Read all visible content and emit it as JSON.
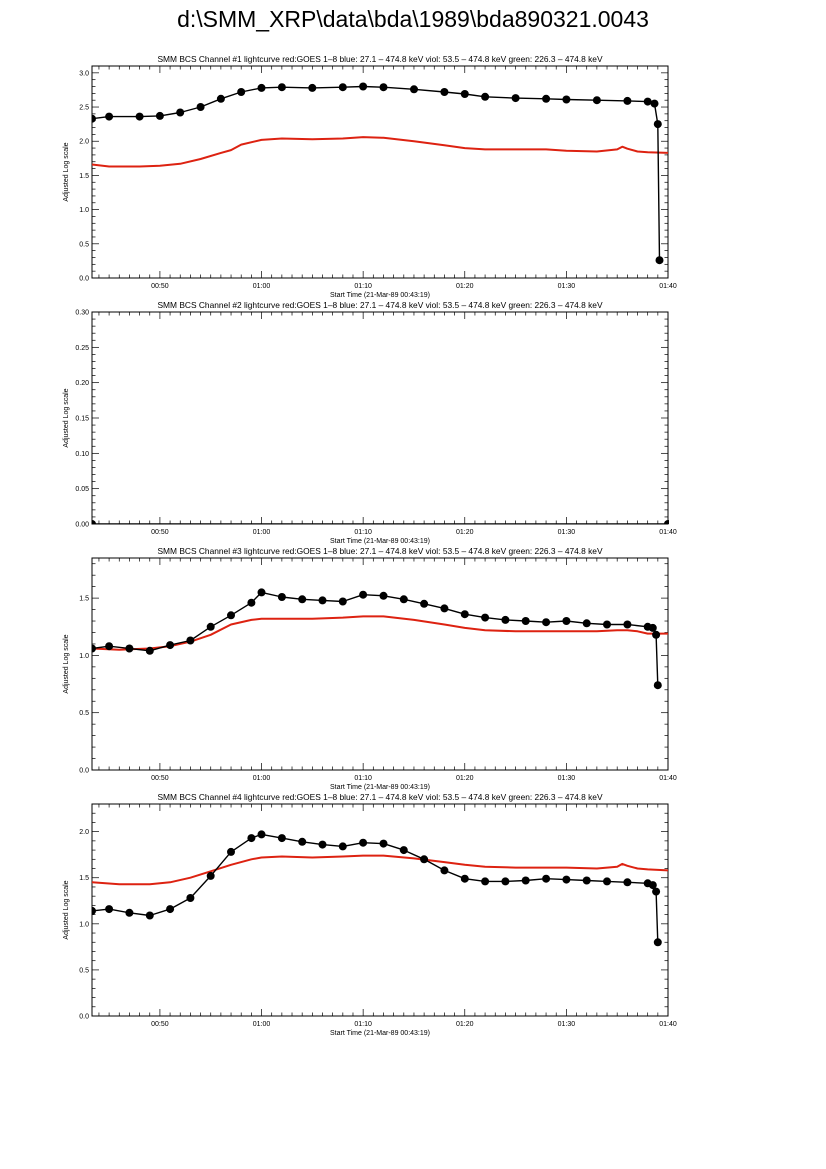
{
  "page_title": "d:\\SMM_XRP\\data\\bda\\1989\\bda890321.0043",
  "colors": {
    "goes": "#dd2211",
    "bcs": "#000000"
  },
  "chart_data": [
    {
      "type": "line",
      "title": "SMM BCS Channel #1 lightcurve  red:GOES 1–8  blue: 27.1 – 474.8 keV  viol: 53.5 – 474.8 keV  green: 226.3 – 474.8 keV",
      "xlabel": "Start Time (21-Mar-89 00:43:19)",
      "ylabel": "Adjusted Log scale",
      "xlim": [
        "00:43:19",
        "01:40:00"
      ],
      "ylim": [
        0,
        3.1
      ],
      "x_ticks": [
        "00:50",
        "01:00",
        "01:10",
        "01:20",
        "01:30",
        "01:40"
      ],
      "y_ticks": [
        "0.0",
        "0.5",
        "1.0",
        "1.5",
        "2.0",
        "2.5",
        "3.0"
      ],
      "series": [
        {
          "color": "#000000",
          "marker": "circle",
          "x": [
            "00:43:19",
            "00:45",
            "00:48",
            "00:50",
            "00:52",
            "00:54",
            "00:56",
            "00:58",
            "01:00",
            "01:02",
            "01:05",
            "01:08",
            "01:10",
            "01:12",
            "01:15",
            "01:18",
            "01:20",
            "01:22",
            "01:25",
            "01:28",
            "01:30",
            "01:33",
            "01:36",
            "01:38",
            "01:38:40",
            "01:39:00",
            "01:39:10"
          ],
          "y": [
            2.33,
            2.36,
            2.36,
            2.37,
            2.42,
            2.5,
            2.62,
            2.72,
            2.78,
            2.79,
            2.78,
            2.79,
            2.8,
            2.79,
            2.76,
            2.72,
            2.69,
            2.65,
            2.63,
            2.62,
            2.61,
            2.6,
            2.59,
            2.58,
            2.55,
            2.25,
            0.26
          ]
        },
        {
          "color": "#dd2211",
          "marker": "none",
          "x": [
            "00:43:19",
            "00:45",
            "00:48",
            "00:50",
            "00:52",
            "00:54",
            "00:56",
            "00:57",
            "00:58",
            "01:00",
            "01:02",
            "01:05",
            "01:08",
            "01:10",
            "01:12",
            "01:15",
            "01:18",
            "01:20",
            "01:22",
            "01:25",
            "01:28",
            "01:30",
            "01:33",
            "01:35",
            "01:35:30",
            "01:36",
            "01:37",
            "01:38",
            "01:40"
          ],
          "y": [
            1.66,
            1.63,
            1.63,
            1.64,
            1.67,
            1.74,
            1.83,
            1.87,
            1.95,
            2.02,
            2.04,
            2.03,
            2.04,
            2.06,
            2.05,
            2.0,
            1.94,
            1.9,
            1.88,
            1.88,
            1.88,
            1.86,
            1.85,
            1.88,
            1.92,
            1.89,
            1.85,
            1.84,
            1.83
          ]
        }
      ]
    },
    {
      "type": "line",
      "title": "SMM BCS Channel #2 lightcurve  red:GOES 1–8  blue: 27.1 – 474.8 keV  viol: 53.5 – 474.8 keV  green: 226.3 – 474.8 keV",
      "xlabel": "Start Time (21-Mar-89 00:43:19)",
      "ylabel": "Adjusted Log scale",
      "xlim": [
        "00:43:19",
        "01:40:00"
      ],
      "ylim": [
        0,
        0.3
      ],
      "x_ticks": [
        "00:50",
        "01:00",
        "01:10",
        "01:20",
        "01:30",
        "01:40"
      ],
      "y_ticks": [
        "0.00",
        "0.05",
        "0.10",
        "0.15",
        "0.20",
        "0.25",
        "0.30"
      ],
      "series": [
        {
          "color": "#000000",
          "marker": "circle",
          "x": [
            "00:43:19",
            "01:40:00"
          ],
          "y": [
            0.0,
            0.0
          ]
        }
      ]
    },
    {
      "type": "line",
      "title": "SMM BCS Channel #3 lightcurve  red:GOES 1–8  blue: 27.1 – 474.8 keV  viol: 53.5 – 474.8 keV  green: 226.3 – 474.8 keV",
      "xlabel": "Start Time (21-Mar-89 00:43:19)",
      "ylabel": "Adjusted Log scale",
      "xlim": [
        "00:43:19",
        "01:40:00"
      ],
      "ylim": [
        0,
        1.85
      ],
      "x_ticks": [
        "00:50",
        "01:00",
        "01:10",
        "01:20",
        "01:30",
        "01:40"
      ],
      "y_ticks": [
        "0.0",
        "0.5",
        "1.0",
        "1.5"
      ],
      "series": [
        {
          "color": "#000000",
          "marker": "circle",
          "x": [
            "00:43:19",
            "00:45",
            "00:47",
            "00:49",
            "00:51",
            "00:53",
            "00:55",
            "00:57",
            "00:59",
            "01:00",
            "01:02",
            "01:04",
            "01:06",
            "01:08",
            "01:10",
            "01:12",
            "01:14",
            "01:16",
            "01:18",
            "01:20",
            "01:22",
            "01:24",
            "01:26",
            "01:28",
            "01:30",
            "01:32",
            "01:34",
            "01:36",
            "01:38",
            "01:38:30",
            "01:38:50",
            "01:39:00"
          ],
          "y": [
            1.06,
            1.08,
            1.06,
            1.04,
            1.09,
            1.13,
            1.25,
            1.35,
            1.46,
            1.55,
            1.51,
            1.49,
            1.48,
            1.47,
            1.53,
            1.52,
            1.49,
            1.45,
            1.41,
            1.36,
            1.33,
            1.31,
            1.3,
            1.29,
            1.3,
            1.28,
            1.27,
            1.27,
            1.25,
            1.24,
            1.18,
            0.74
          ]
        },
        {
          "color": "#dd2211",
          "marker": "none",
          "x": [
            "00:43:19",
            "00:46",
            "00:49",
            "00:51",
            "00:53",
            "00:55",
            "00:57",
            "00:59",
            "01:00",
            "01:02",
            "01:05",
            "01:08",
            "01:10",
            "01:12",
            "01:15",
            "01:18",
            "01:20",
            "01:22",
            "01:25",
            "01:28",
            "01:30",
            "01:33",
            "01:35",
            "01:36",
            "01:37",
            "01:38",
            "01:40"
          ],
          "y": [
            1.06,
            1.05,
            1.06,
            1.08,
            1.12,
            1.18,
            1.27,
            1.31,
            1.32,
            1.32,
            1.32,
            1.33,
            1.34,
            1.34,
            1.31,
            1.27,
            1.24,
            1.22,
            1.21,
            1.21,
            1.21,
            1.21,
            1.22,
            1.22,
            1.21,
            1.19,
            1.19
          ]
        }
      ]
    },
    {
      "type": "line",
      "title": "SMM BCS Channel #4 lightcurve  red:GOES 1–8  blue: 27.1 – 474.8 keV  viol: 53.5 – 474.8 keV  green: 226.3 – 474.8 keV",
      "xlabel": "Start Time (21-Mar-89 00:43:19)",
      "ylabel": "Adjusted Log scale",
      "xlim": [
        "00:43:19",
        "01:40:00"
      ],
      "ylim": [
        0,
        2.3
      ],
      "x_ticks": [
        "00:50",
        "01:00",
        "01:10",
        "01:20",
        "01:30",
        "01:40"
      ],
      "y_ticks": [
        "0.0",
        "0.5",
        "1.0",
        "1.5",
        "2.0"
      ],
      "series": [
        {
          "color": "#000000",
          "marker": "circle",
          "x": [
            "00:43:19",
            "00:45",
            "00:47",
            "00:49",
            "00:51",
            "00:53",
            "00:55",
            "00:57",
            "00:59",
            "01:00",
            "01:02",
            "01:04",
            "01:06",
            "01:08",
            "01:10",
            "01:12",
            "01:14",
            "01:16",
            "01:18",
            "01:20",
            "01:22",
            "01:24",
            "01:26",
            "01:28",
            "01:30",
            "01:32",
            "01:34",
            "01:36",
            "01:38",
            "01:38:30",
            "01:38:50",
            "01:39:00"
          ],
          "y": [
            1.14,
            1.16,
            1.12,
            1.09,
            1.16,
            1.28,
            1.52,
            1.78,
            1.93,
            1.97,
            1.93,
            1.89,
            1.86,
            1.84,
            1.88,
            1.87,
            1.8,
            1.7,
            1.58,
            1.49,
            1.46,
            1.46,
            1.47,
            1.49,
            1.48,
            1.47,
            1.46,
            1.45,
            1.44,
            1.42,
            1.35,
            0.8
          ]
        },
        {
          "color": "#dd2211",
          "marker": "none",
          "x": [
            "00:43:19",
            "00:46",
            "00:49",
            "00:51",
            "00:53",
            "00:55",
            "00:57",
            "00:59",
            "01:00",
            "01:02",
            "01:05",
            "01:08",
            "01:10",
            "01:12",
            "01:15",
            "01:18",
            "01:20",
            "01:22",
            "01:25",
            "01:28",
            "01:30",
            "01:33",
            "01:35",
            "01:35:30",
            "01:36",
            "01:37",
            "01:38",
            "01:40"
          ],
          "y": [
            1.45,
            1.43,
            1.43,
            1.45,
            1.5,
            1.57,
            1.64,
            1.7,
            1.72,
            1.73,
            1.72,
            1.73,
            1.74,
            1.74,
            1.71,
            1.67,
            1.64,
            1.62,
            1.61,
            1.61,
            1.61,
            1.6,
            1.62,
            1.65,
            1.63,
            1.6,
            1.59,
            1.58
          ]
        }
      ]
    }
  ]
}
